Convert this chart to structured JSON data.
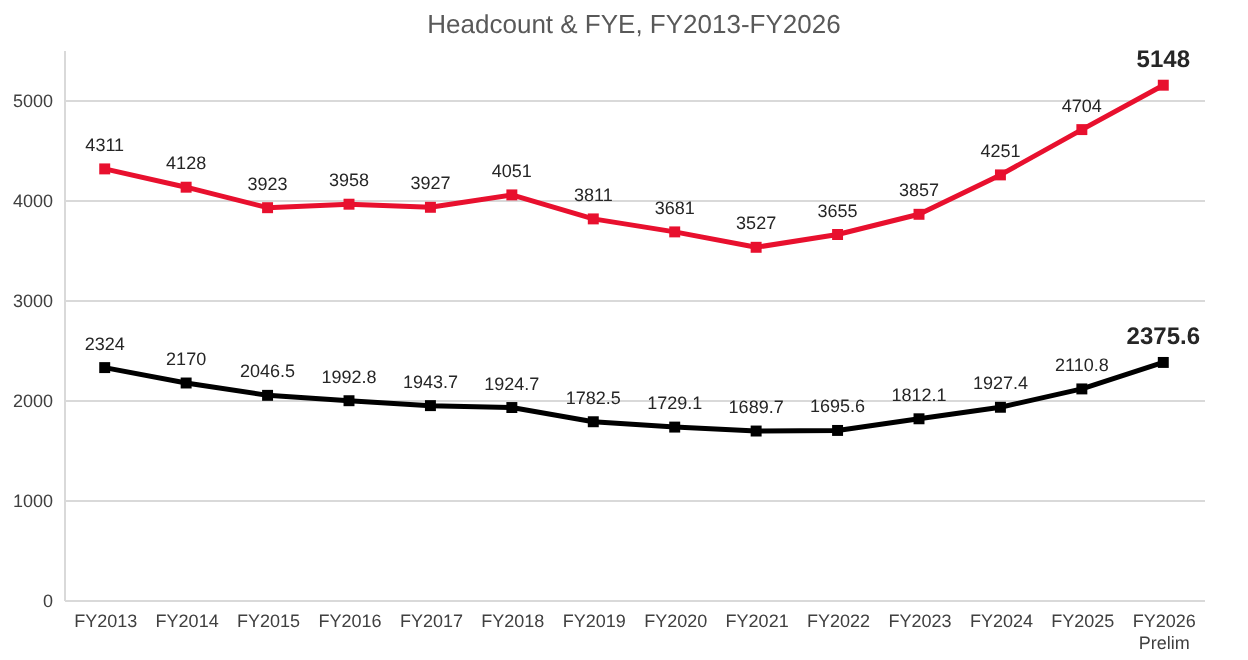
{
  "chart_data": {
    "type": "line",
    "title": "Headcount & FYE, FY2013-FY2026",
    "categories": [
      "FY2013",
      "FY2014",
      "FY2015",
      "FY2016",
      "FY2017",
      "FY2018",
      "FY2019",
      "FY2020",
      "FY2021",
      "FY2022",
      "FY2023",
      "FY2024",
      "FY2025",
      "FY2026\nPrelim"
    ],
    "series": [
      {
        "color": "#e8102e",
        "values": [
          4311,
          4128,
          3923,
          3958,
          3927,
          4051,
          3811,
          3681,
          3527,
          3655,
          3857,
          4251,
          4704,
          5148
        ]
      },
      {
        "color": "#000000",
        "values": [
          2324,
          2170,
          2046.5,
          1992.8,
          1943.7,
          1924.7,
          1782.5,
          1729.1,
          1689.7,
          1695.6,
          1812.1,
          1927.4,
          2110.8,
          2375.6
        ]
      }
    ],
    "ylim": [
      0,
      5500
    ],
    "yticks": [
      0,
      1000,
      2000,
      3000,
      4000,
      5000
    ],
    "grid": "y",
    "marker": "square",
    "line_style": "solid",
    "data_labels": true
  }
}
